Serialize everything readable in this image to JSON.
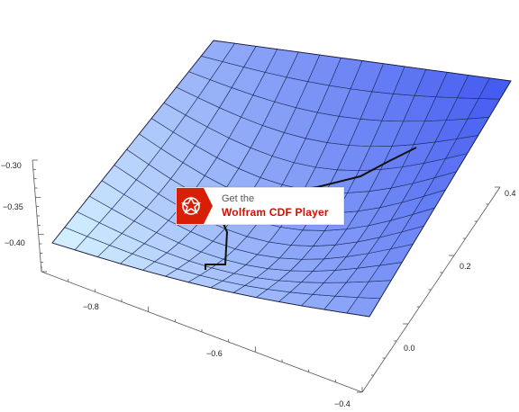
{
  "chart_data": {
    "type": "surface3d",
    "title": "",
    "xlabel": "",
    "ylabel": "",
    "zlabel": "",
    "x_ticks": [
      -0.8,
      -0.6,
      -0.4
    ],
    "y_ticks": [
      0.0,
      0.2,
      0.4
    ],
    "z_ticks": [
      -0.4,
      -0.35,
      -0.3
    ],
    "x_tick_labels": [
      "−0.8",
      "−0.6",
      "−0.4"
    ],
    "y_tick_labels": [
      "0.0",
      "0.2",
      "0.4"
    ],
    "z_tick_labels": [
      "−0.40",
      "−0.35",
      "−0.30"
    ],
    "xlim": [
      -0.95,
      -0.4
    ],
    "ylim": [
      -0.05,
      0.45
    ],
    "zlim": [
      -0.43,
      -0.28
    ],
    "mesh": {
      "rows": 13,
      "cols": 14
    },
    "surface_color_near": "#d8f4ff",
    "surface_color_far": "#3f56f0",
    "mesh_line_color": "#1b2a5a",
    "path_color": "#111111",
    "grid": false
  },
  "cdf_badge": {
    "line1": "Get the",
    "line2": "Wolfram CDF Player",
    "accent": "#cc1100",
    "logo_icon": "wolfram-spikey-icon"
  }
}
